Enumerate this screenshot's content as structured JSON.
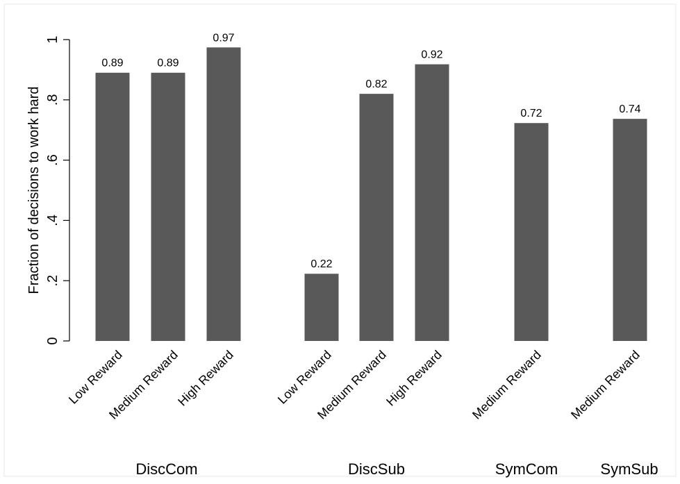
{
  "chart_data": {
    "type": "bar",
    "title": "",
    "xlabel": "",
    "ylabel": "Fraction of decisions to work hard",
    "ylim": [
      0,
      1
    ],
    "yticks": [
      {
        "value": 0,
        "label": "0"
      },
      {
        "value": 0.2,
        "label": ".2"
      },
      {
        "value": 0.4,
        "label": ".4"
      },
      {
        "value": 0.6,
        "label": ".6"
      },
      {
        "value": 0.8,
        "label": ".8"
      },
      {
        "value": 1,
        "label": "1"
      }
    ],
    "grid": false,
    "bar_color": "#595959",
    "groups": [
      {
        "name": "DiscCom",
        "bars": [
          {
            "category": "Low Reward",
            "value": 0.89,
            "label": "0.89"
          },
          {
            "category": "Medium Reward",
            "value": 0.89,
            "label": "0.89"
          },
          {
            "category": "High Reward",
            "value": 0.974,
            "label": "0.97"
          }
        ]
      },
      {
        "name": "DiscSub",
        "bars": [
          {
            "category": "Low Reward",
            "value": 0.223,
            "label": "0.22"
          },
          {
            "category": "Medium Reward",
            "value": 0.82,
            "label": "0.82"
          },
          {
            "category": "High Reward",
            "value": 0.918,
            "label": "0.92"
          }
        ]
      },
      {
        "name": "SymCom",
        "bars": [
          {
            "category": "Medium Reward",
            "value": 0.723,
            "label": "0.72"
          }
        ]
      },
      {
        "name": "SymSub",
        "bars": [
          {
            "category": "Medium Reward",
            "value": 0.737,
            "label": "0.74"
          }
        ]
      }
    ]
  }
}
